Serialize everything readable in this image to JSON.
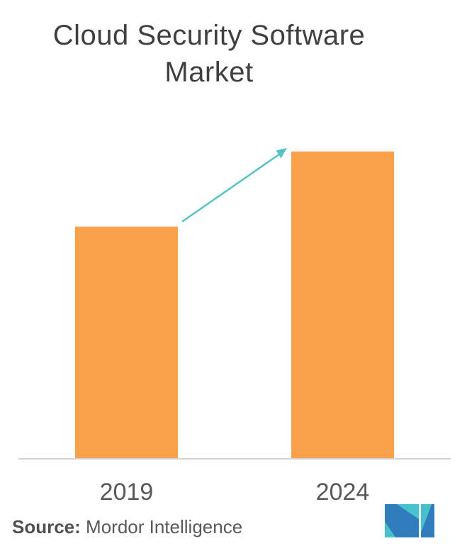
{
  "title": {
    "line1": "Cloud Security Software",
    "line2": "Market"
  },
  "chart_data": {
    "type": "bar",
    "title": "Cloud Security Software Market",
    "categories": [
      "2019",
      "2024"
    ],
    "values": [
      75.6,
      100
    ],
    "values_note": "no numeric axis shown; values are relative bar heights (% of 2024 bar)",
    "xlabel": "",
    "ylabel": "",
    "grid": false,
    "legend": false,
    "bar_color": "#faa14b",
    "axis_line_color": "#d4d4d6",
    "annotations": [
      {
        "type": "growth-arrow",
        "from_category": "2019",
        "to_category": "2024",
        "color": "#54c3c8"
      }
    ]
  },
  "source": {
    "label": "Source:",
    "text": "Mordor Intelligence"
  },
  "logo": {
    "name": "mordor-intelligence-logo",
    "teal": "#45c2cb",
    "blue": "#2f7dbc"
  },
  "colors": {
    "background": "#ffffff",
    "title_text": "#3f4042",
    "tick_text": "#58595b",
    "source_text": "#58595b"
  }
}
